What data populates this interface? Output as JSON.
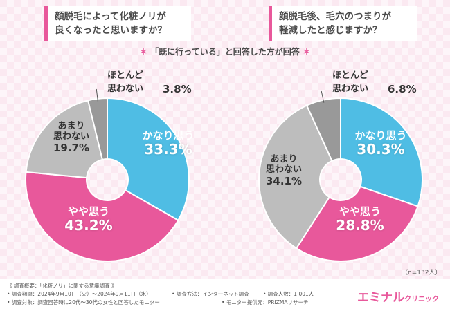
{
  "questions": {
    "left": [
      "顔脱毛によって化粧ノリが",
      "良くなったと思いますか？"
    ],
    "right": [
      "顔脱毛後、毛穴のつまりが",
      "軽減したと感じますか？"
    ]
  },
  "note": {
    "star": "＊",
    "text": "「既に行っている」と回答した方が回答"
  },
  "labels": {
    "kanari": "かなり思う",
    "yaya": "やや思う",
    "amari": [
      "あまり",
      "思わない"
    ],
    "hotondo": [
      "ほとんど",
      "思わない"
    ]
  },
  "chart_data": [
    {
      "type": "pie",
      "title": "顔脱毛によって化粧ノリが良くなったと思いますか？",
      "categories": [
        "かなり思う",
        "やや思う",
        "あまり思わない",
        "ほとんど思わない"
      ],
      "values": [
        33.3,
        43.2,
        19.7,
        3.8
      ],
      "value_labels": [
        "33.3%",
        "43.2%",
        "19.7%",
        "3.8%"
      ],
      "colors": [
        "#4fbde4",
        "#e8589b",
        "#bdbdbd",
        "#999999"
      ]
    },
    {
      "type": "pie",
      "title": "顔脱毛後、毛穴のつまりが軽減したと感じますか？",
      "categories": [
        "かなり思う",
        "やや思う",
        "あまり思わない",
        "ほとんど思わない"
      ],
      "values": [
        30.3,
        28.8,
        34.1,
        6.8
      ],
      "value_labels": [
        "30.3%",
        "28.8%",
        "34.1%",
        "6.8%"
      ],
      "colors": [
        "#4fbde4",
        "#e8589b",
        "#bdbdbd",
        "#999999"
      ]
    }
  ],
  "sample_size": "（n=132人）",
  "footer": {
    "line1": "《 調査概要：「化粧ノリ」に関する意識調査 》",
    "line2a": "• 調査期間：2024年9月10日（火）〜2024年9月11日（水）",
    "line2b": "• 調査方法：インターネット調査",
    "line2c": "• 調査人数：1,001人",
    "line3a": "• 調査対象：調査回答時に20代〜30代の女性と回答したモニター",
    "line3b": "• モニター提供元：PRIZMAリサーチ"
  },
  "logo": {
    "main": "エミナル",
    "sub": "クリニック"
  }
}
